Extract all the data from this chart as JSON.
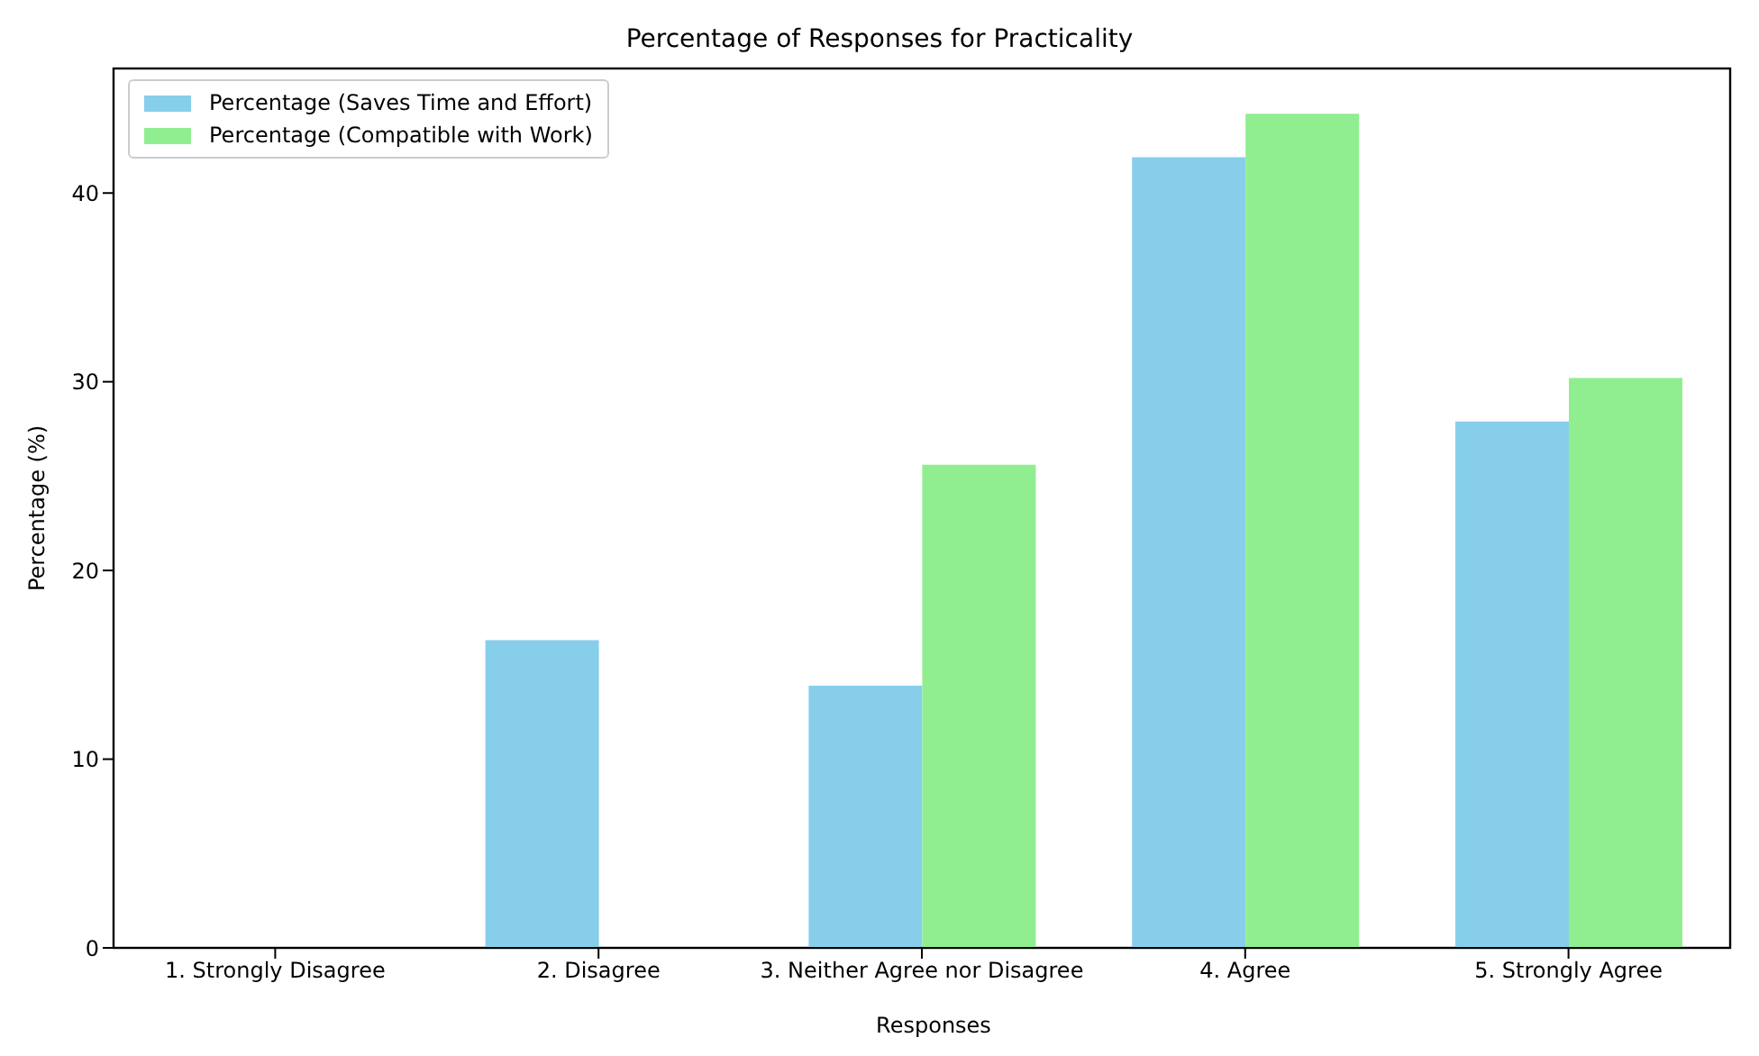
{
  "chart_data": {
    "type": "bar",
    "title": "Percentage of Responses for Practicality",
    "xlabel": "Responses",
    "ylabel": "Percentage (%)",
    "categories": [
      "1. Strongly Disagree",
      "2. Disagree",
      "3. Neither Agree nor Disagree",
      "4. Agree",
      "5. Strongly Agree"
    ],
    "series": [
      {
        "name": "Percentage (Saves Time and Effort)",
        "color": "#87ceeb",
        "values": [
          0,
          16.3,
          13.9,
          41.9,
          27.9
        ]
      },
      {
        "name": "Percentage (Compatible with Work)",
        "color": "#90ee90",
        "values": [
          0,
          0,
          25.6,
          44.2,
          30.2
        ]
      }
    ],
    "ylim": [
      0,
      46.6
    ],
    "yticks": [
      0,
      10,
      20,
      30,
      40
    ],
    "grid": false,
    "legend": "top left"
  }
}
